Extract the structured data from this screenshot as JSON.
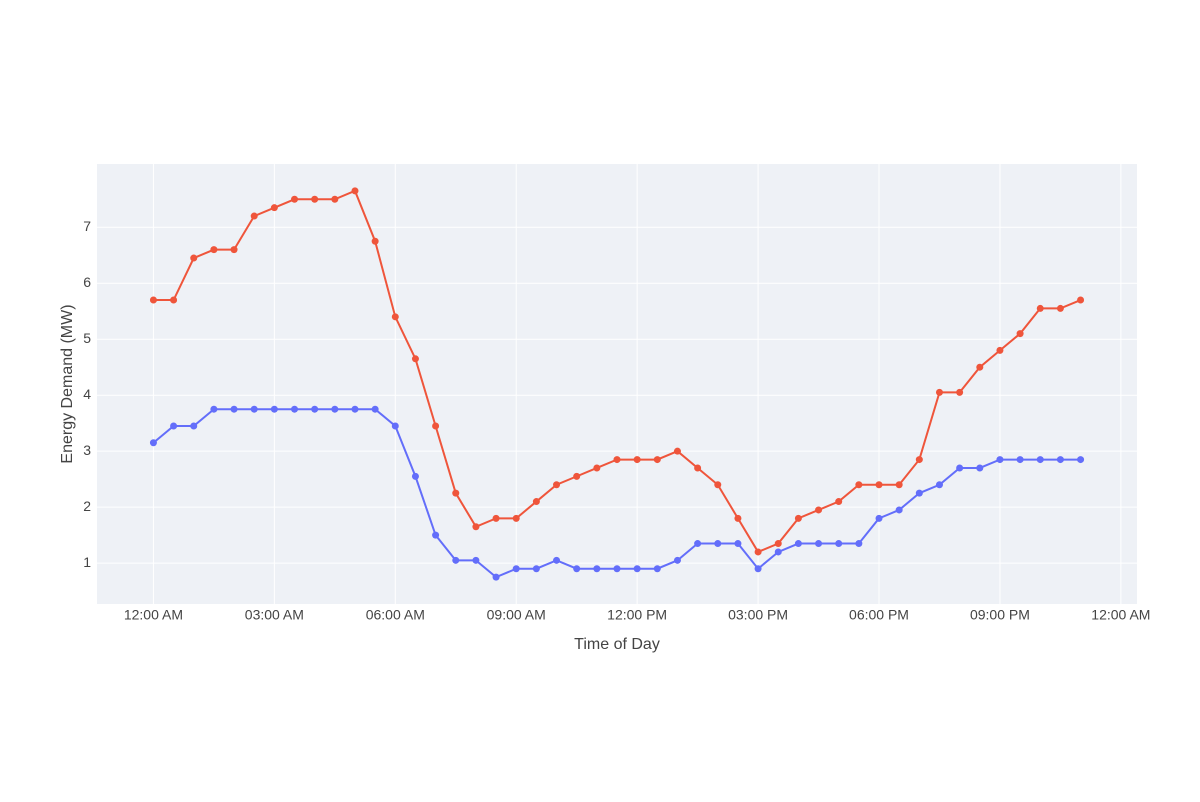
{
  "chart_data": {
    "type": "line",
    "x_label": "Time of Day",
    "y_label": "Energy Demand (MW)",
    "x": [
      0,
      0.5,
      1,
      1.5,
      2,
      2.5,
      3,
      3.5,
      4,
      4.5,
      5,
      5.5,
      6,
      6.5,
      7,
      7.5,
      8,
      8.5,
      9,
      9.5,
      10,
      10.5,
      11,
      11.5,
      12,
      12.5,
      13,
      13.5,
      14,
      14.5,
      15,
      15.5,
      16,
      16.5,
      17,
      17.5,
      18,
      18.5,
      19,
      19.5,
      20,
      20.5,
      21,
      21.5,
      22,
      22.5,
      23
    ],
    "series": [
      {
        "color": "#ef553b",
        "values": [
          5.7,
          5.7,
          6.45,
          6.6,
          6.6,
          7.2,
          7.35,
          7.5,
          7.5,
          7.5,
          7.65,
          6.75,
          5.4,
          4.65,
          3.45,
          2.25,
          1.65,
          1.8,
          1.8,
          2.1,
          2.4,
          2.55,
          2.7,
          2.85,
          2.85,
          2.85,
          3.0,
          2.7,
          2.4,
          1.8,
          1.2,
          1.35,
          1.8,
          1.95,
          2.1,
          2.4,
          2.4,
          2.4,
          2.85,
          4.05,
          4.05,
          4.5,
          4.8,
          5.1,
          5.55,
          5.55,
          5.7
        ]
      },
      {
        "color": "#636efa",
        "values": [
          3.15,
          3.45,
          3.45,
          3.75,
          3.75,
          3.75,
          3.75,
          3.75,
          3.75,
          3.75,
          3.75,
          3.75,
          3.45,
          2.55,
          1.5,
          1.05,
          1.05,
          0.75,
          0.9,
          0.9,
          1.05,
          0.9,
          0.9,
          0.9,
          0.9,
          0.9,
          1.05,
          1.35,
          1.35,
          1.35,
          0.9,
          1.2,
          1.35,
          1.35,
          1.35,
          1.35,
          1.8,
          1.95,
          2.25,
          2.4,
          2.7,
          2.7,
          2.85,
          2.85,
          2.85,
          2.85,
          2.85
        ]
      }
    ],
    "xlim": [
      -1.4,
      24.4
    ],
    "xticks": [
      {
        "value": 0,
        "label": "12:00 AM"
      },
      {
        "value": 3,
        "label": "03:00 AM"
      },
      {
        "value": 6,
        "label": "06:00 AM"
      },
      {
        "value": 9,
        "label": "09:00 AM"
      },
      {
        "value": 12,
        "label": "12:00 PM"
      },
      {
        "value": 15,
        "label": "03:00 PM"
      },
      {
        "value": 18,
        "label": "06:00 PM"
      },
      {
        "value": 21,
        "label": "09:00 PM"
      },
      {
        "value": 24,
        "label": "12:00 AM"
      }
    ],
    "ylim": [
      0.27,
      8.13
    ],
    "yticks": [
      1,
      2,
      3,
      4,
      5,
      6,
      7
    ],
    "grid": true
  }
}
